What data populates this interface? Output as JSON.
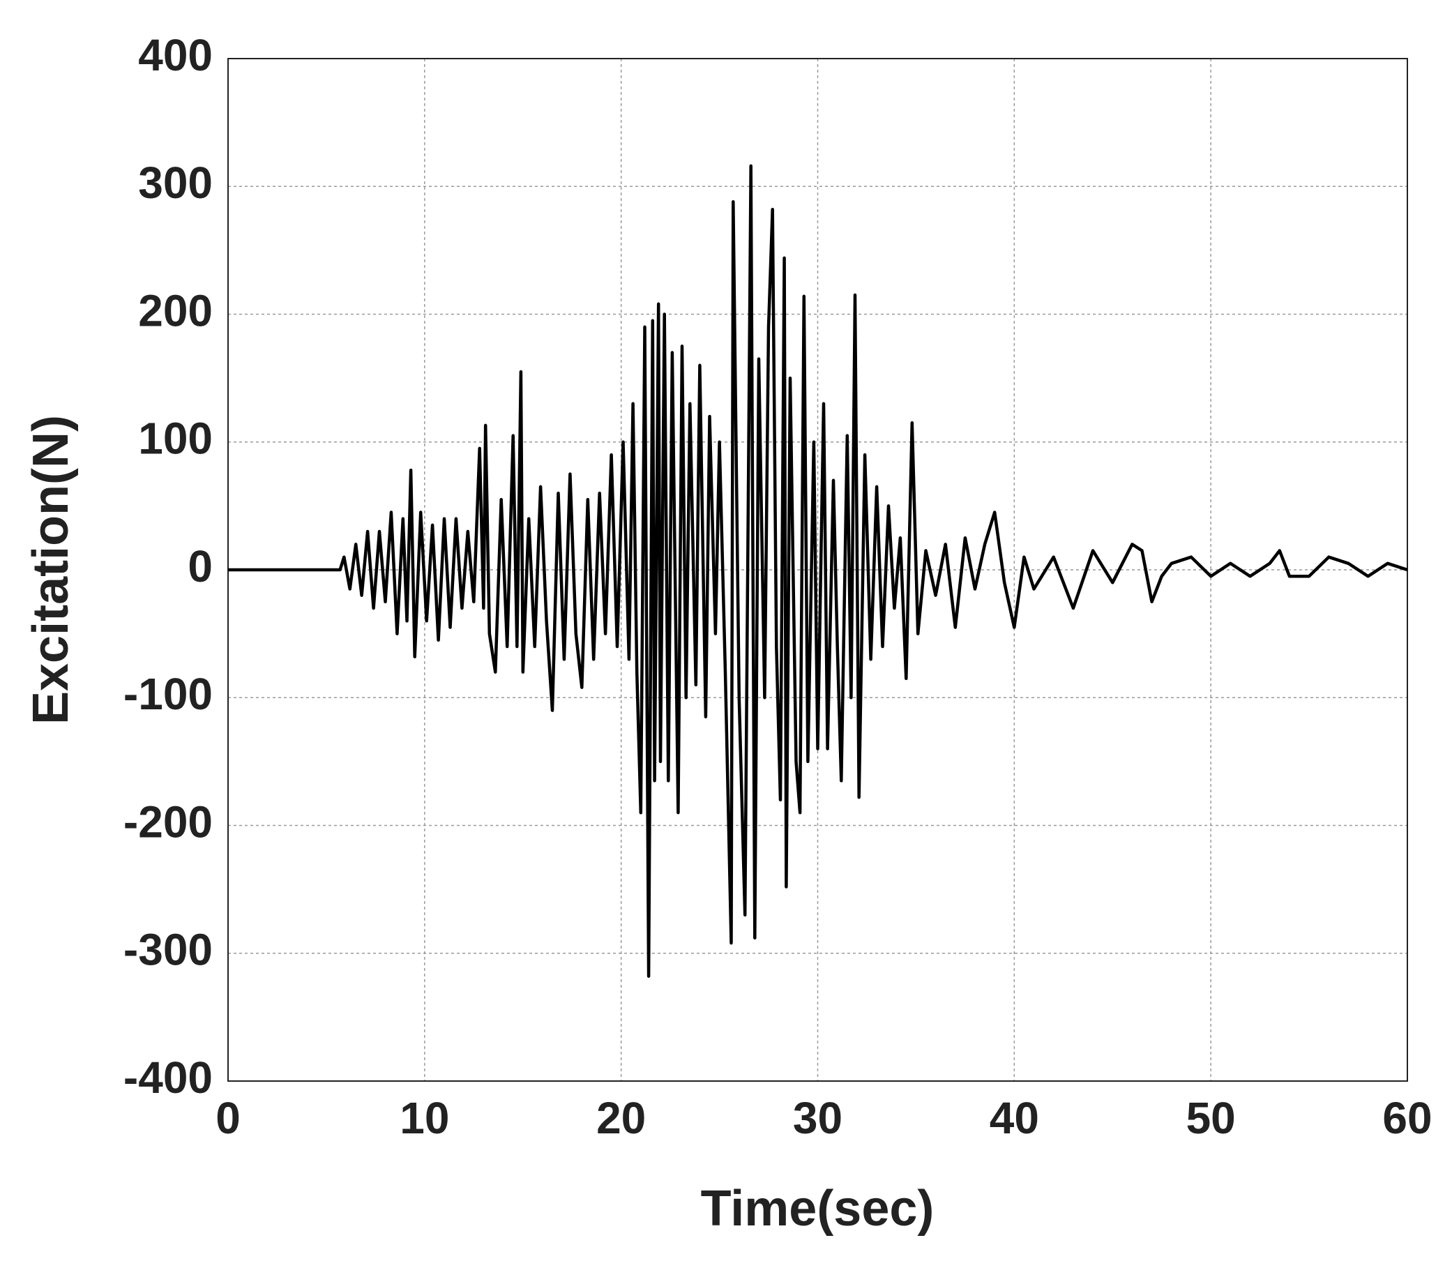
{
  "chart_data": {
    "type": "line",
    "xlabel": "Time(sec)",
    "ylabel": "Excitation(N)",
    "xlim": [
      0,
      60
    ],
    "xticks": [
      0,
      10,
      20,
      30,
      40,
      50,
      60
    ],
    "ylim": [
      -400,
      400
    ],
    "yticks": [
      -400,
      -300,
      -200,
      -100,
      0,
      100,
      200,
      300,
      400
    ],
    "grid": true,
    "x": [
      0,
      5.7,
      5.9,
      6.2,
      6.5,
      6.8,
      7.1,
      7.4,
      7.7,
      8.0,
      8.3,
      8.6,
      8.9,
      9.1,
      9.3,
      9.5,
      9.8,
      10.1,
      10.4,
      10.7,
      11.0,
      11.3,
      11.6,
      11.9,
      12.2,
      12.5,
      12.8,
      13.0,
      13.1,
      13.3,
      13.6,
      13.9,
      14.2,
      14.5,
      14.7,
      14.9,
      15.0,
      15.3,
      15.6,
      15.9,
      16.2,
      16.5,
      16.8,
      17.1,
      17.4,
      17.7,
      18.0,
      18.3,
      18.6,
      18.9,
      19.2,
      19.5,
      19.8,
      20.1,
      20.4,
      20.6,
      20.8,
      21.0,
      21.2,
      21.4,
      21.6,
      21.7,
      21.9,
      22.0,
      22.2,
      22.4,
      22.6,
      22.9,
      23.1,
      23.3,
      23.5,
      23.8,
      24.0,
      24.3,
      24.5,
      24.8,
      25.0,
      25.3,
      25.6,
      25.7,
      26.0,
      26.3,
      26.6,
      26.8,
      27.0,
      27.3,
      27.5,
      27.7,
      27.9,
      28.1,
      28.3,
      28.4,
      28.6,
      28.9,
      29.1,
      29.3,
      29.5,
      29.8,
      30.0,
      30.3,
      30.5,
      30.8,
      31.0,
      31.2,
      31.5,
      31.7,
      31.9,
      32.1,
      32.4,
      32.7,
      33.0,
      33.3,
      33.6,
      33.9,
      34.2,
      34.5,
      34.8,
      35.1,
      35.5,
      36.0,
      36.5,
      37.0,
      37.5,
      38.0,
      38.5,
      39.0,
      39.5,
      40.0,
      40.5,
      41.0,
      42.0,
      43.0,
      44.0,
      45.0,
      46.0,
      46.5,
      47.0,
      47.5,
      48.0,
      49.0,
      50.0,
      51.0,
      52.0,
      53.0,
      53.5,
      54.0,
      55.0,
      56.0,
      57.0,
      58.0,
      59.0,
      60.0
    ],
    "series": [
      {
        "color": "#000000",
        "values": [
          0,
          0,
          10,
          -15,
          20,
          -20,
          30,
          -30,
          30,
          -25,
          45,
          -50,
          40,
          -40,
          78,
          -68,
          45,
          -40,
          35,
          -55,
          40,
          -45,
          40,
          -30,
          30,
          -25,
          95,
          -30,
          113,
          -50,
          -80,
          55,
          -60,
          105,
          -60,
          155,
          -80,
          40,
          -60,
          65,
          -40,
          -110,
          60,
          -70,
          75,
          -50,
          -92,
          55,
          -70,
          60,
          -50,
          90,
          -60,
          100,
          -70,
          130,
          -80,
          -190,
          190,
          -318,
          195,
          -165,
          208,
          -150,
          200,
          -165,
          170,
          -190,
          175,
          -100,
          130,
          -90,
          160,
          -115,
          120,
          -50,
          100,
          -80,
          -292,
          288,
          -100,
          -270,
          316,
          -288,
          165,
          -100,
          190,
          282,
          -60,
          -180,
          244,
          -248,
          150,
          -150,
          -190,
          214,
          -150,
          100,
          -140,
          130,
          -140,
          70,
          -60,
          -165,
          105,
          -100,
          215,
          -178,
          90,
          -70,
          65,
          -60,
          50,
          -30,
          25,
          -85,
          115,
          -50,
          15,
          -20,
          20,
          -45,
          25,
          -15,
          20,
          45,
          -10,
          -45,
          10,
          -15,
          10,
          -30,
          15,
          -10,
          20,
          15,
          -25,
          -5,
          5,
          10,
          -5,
          5,
          -5,
          5,
          15,
          -5,
          -5,
          10,
          5,
          -5,
          5,
          0
        ]
      }
    ]
  }
}
